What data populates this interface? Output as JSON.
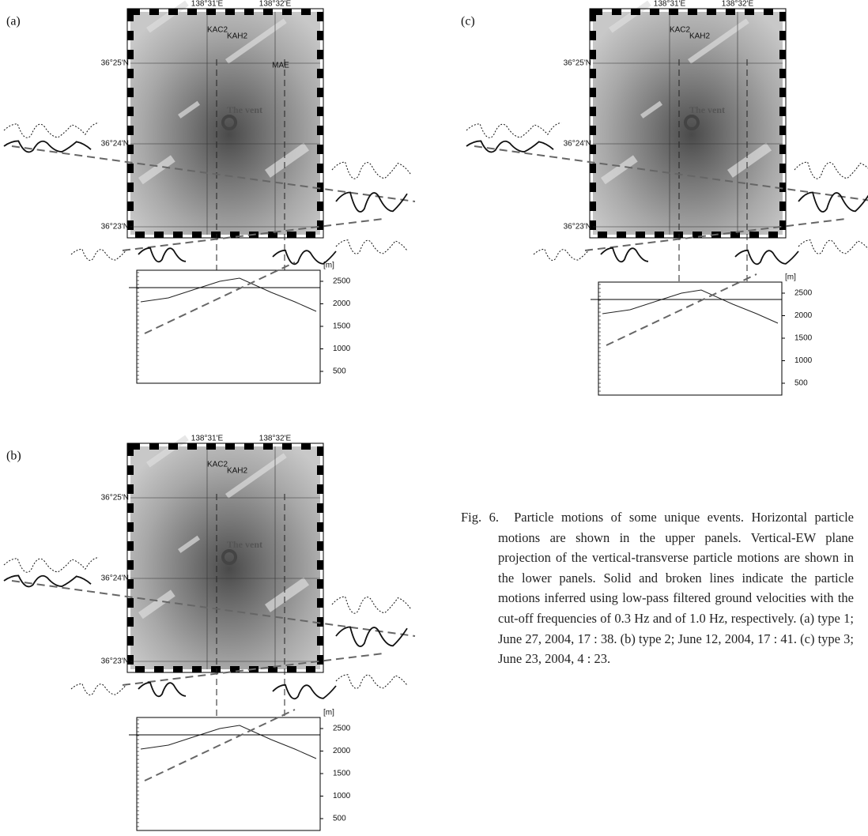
{
  "panels": [
    {
      "label": "(a)",
      "lon_labels": [
        "138°31'E",
        "138°32'E"
      ],
      "lat_labels": [
        "36°25'N",
        "36°24'N",
        "36°23'N"
      ],
      "stations": [
        "KAC2",
        "KAH2",
        "MAE"
      ],
      "vent": "The vent",
      "profile": {
        "unit": "[m]",
        "ticks": [
          2500,
          2000,
          1500,
          1000,
          500
        ]
      }
    },
    {
      "label": "(b)",
      "lon_labels": [
        "138°31'E",
        "138°32'E"
      ],
      "lat_labels": [
        "36°25'N",
        "36°24'N",
        "36°23'N"
      ],
      "stations": [
        "KAC2",
        "KAH2"
      ],
      "vent": "The vent",
      "profile": {
        "unit": "[m]",
        "ticks": [
          2500,
          2000,
          1500,
          1000,
          500
        ]
      }
    },
    {
      "label": "(c)",
      "lon_labels": [
        "138°31'E",
        "138°32'E"
      ],
      "lat_labels": [
        "36°25'N",
        "36°24'N",
        "36°23'N"
      ],
      "stations": [
        "KAC2",
        "KAH2"
      ],
      "vent": "The vent",
      "profile": {
        "unit": "[m]",
        "ticks": [
          2500,
          2000,
          1500,
          1000,
          500
        ]
      }
    }
  ],
  "caption": {
    "label": "Fig. 6.",
    "text": "Particle motions of some unique events. Horizontal particle motions are shown in the upper panels. Vertical-EW plane projection of the vertical-transverse particle motions are shown in the lower panels. Solid and broken lines indicate the particle motions inferred using low-pass filtered ground velocities with the cut-off frequencies of 0.3 Hz and of 1.0 Hz, respectively. (a) type 1; June 27, 2004, 17 : 38. (b) type 2; June 12, 2004, 17 : 41. (c) type 3; June 23, 2004, 4 : 23."
  }
}
